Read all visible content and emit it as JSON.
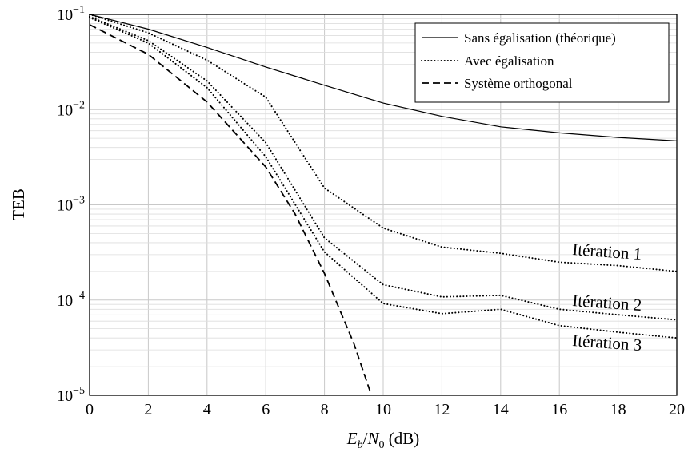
{
  "chart_data": {
    "type": "line",
    "xlabel": "E_b/N_0 (dB)",
    "ylabel": "TEB",
    "xlim": [
      0,
      20
    ],
    "ylim": [
      1e-05,
      0.1
    ],
    "yscale": "log",
    "grid": true,
    "legend_position": "top-right",
    "x_ticks": [
      "0",
      "2",
      "4",
      "6",
      "8",
      "10",
      "12",
      "14",
      "16",
      "18",
      "20"
    ],
    "y_ticks": [
      {
        "value": 0.1,
        "mantissa": "10",
        "exponent": "−1"
      },
      {
        "value": 0.01,
        "mantissa": "10",
        "exponent": "−2"
      },
      {
        "value": 0.001,
        "mantissa": "10",
        "exponent": "−3"
      },
      {
        "value": 0.0001,
        "mantissa": "10",
        "exponent": "−4"
      },
      {
        "value": 1e-05,
        "mantissa": "10",
        "exponent": "−5"
      }
    ],
    "legend": [
      {
        "label": "Sans égalisation (théorique)",
        "style": "solid"
      },
      {
        "label": "Avec égalisation",
        "style": "dotted"
      },
      {
        "label": "Système orthogonal",
        "style": "dashed"
      }
    ],
    "series": [
      {
        "name": "Sans égalisation (théorique)",
        "style": "solid",
        "x": [
          0,
          2,
          4,
          6,
          8,
          10,
          12,
          14,
          16,
          18,
          20
        ],
        "y": [
          0.1,
          0.07,
          0.045,
          0.028,
          0.018,
          0.0117,
          0.0085,
          0.0066,
          0.0057,
          0.0051,
          0.0047
        ]
      },
      {
        "label_key": "iterations.0",
        "style": "dotted",
        "x": [
          0,
          2,
          4,
          6,
          8,
          10,
          12,
          14,
          16,
          18,
          20
        ],
        "y": [
          0.1,
          0.064,
          0.033,
          0.0135,
          0.0015,
          0.00057,
          0.00036,
          0.00031,
          0.00025,
          0.00023,
          0.0002
        ]
      },
      {
        "label_key": "iterations.1",
        "style": "dotted",
        "x": [
          0,
          2,
          4,
          6,
          8,
          10,
          12,
          14,
          16,
          18,
          20
        ],
        "y": [
          0.095,
          0.053,
          0.02,
          0.0045,
          0.00045,
          0.000145,
          0.000108,
          0.000112,
          8e-05,
          7e-05,
          6.2e-05
        ]
      },
      {
        "label_key": "iterations.2",
        "style": "dotted",
        "x": [
          0,
          2,
          4,
          6,
          8,
          10,
          12,
          14,
          16,
          18,
          20
        ],
        "y": [
          0.093,
          0.05,
          0.017,
          0.0032,
          0.00032,
          9.2e-05,
          7.2e-05,
          8e-05,
          5.4e-05,
          4.6e-05,
          4e-05
        ]
      },
      {
        "name": "Système orthogonal",
        "style": "dashed",
        "x": [
          0,
          2,
          4,
          6,
          7,
          8,
          9,
          9.6
        ],
        "y": [
          0.078,
          0.038,
          0.012,
          0.0025,
          0.0008,
          0.00019,
          3.5e-05,
          1e-05
        ]
      }
    ],
    "annotations": [
      "Itération 1",
      "Itération 2",
      "Itération 3"
    ]
  },
  "iterations": [
    "Itération 1",
    "Itération 2",
    "Itération 3"
  ]
}
